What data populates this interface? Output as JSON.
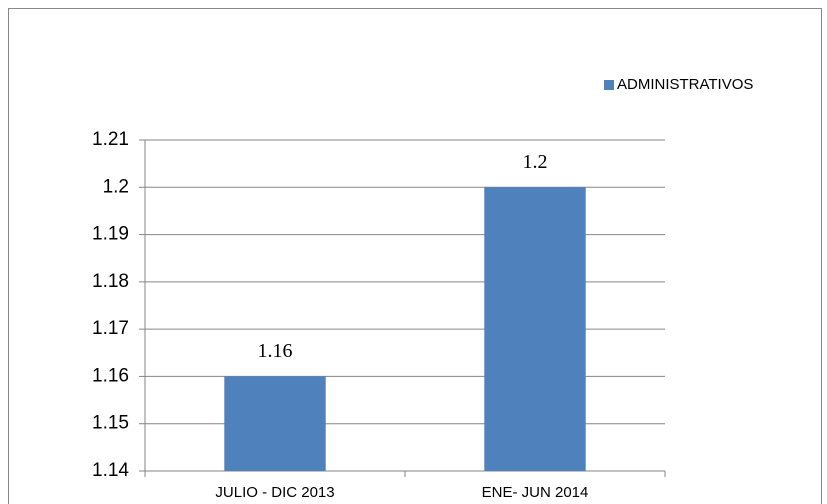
{
  "chart_data": {
    "type": "bar",
    "categories": [
      "JULIO - DIC 2013",
      "ENE- JUN 2014"
    ],
    "series": [
      {
        "name": "ADMINISTRATIVOS",
        "color": "#4f81bd",
        "values": [
          1.16,
          1.2
        ]
      }
    ],
    "ylim": [
      1.14,
      1.21
    ],
    "yticks": [
      1.14,
      1.15,
      1.16,
      1.17,
      1.18,
      1.19,
      1.2,
      1.21
    ],
    "grid": true,
    "legend": "top-right",
    "data_labels": true
  }
}
